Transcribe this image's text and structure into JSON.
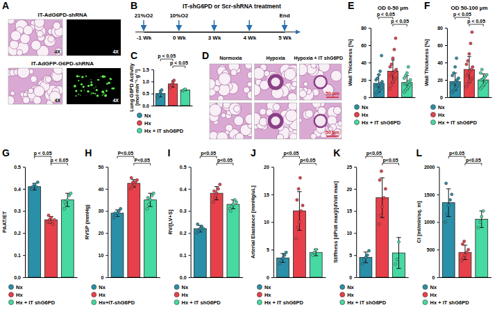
{
  "chart_data": [
    {
      "type": "image",
      "label": "A",
      "rows": [
        {
          "title": "IT-AdG6PD-shRNA",
          "magnifications": [
            "4X",
            "4X"
          ]
        },
        {
          "title": "IT-AdGFP-G6PD-shRNA",
          "magnifications": [
            "4X",
            "4X"
          ]
        }
      ]
    },
    {
      "type": "timeline",
      "label": "B",
      "title": "IT-shG6PD or Scr-shRNA treatment",
      "categories": [
        "-1 Wk",
        "0 Wk",
        "3 Wk",
        "4 Wk",
        "5 Wk"
      ],
      "annotations": [
        {
          "text": "21%O2",
          "at": 0
        },
        {
          "text": "10%O2",
          "at": 1
        },
        {
          "text": "End",
          "at": 4
        }
      ]
    },
    {
      "type": "bar",
      "label": "C",
      "ylabel": "Lung G6PD Activity [mol·min⁻¹·g⁻¹]",
      "categories": [
        "Nx",
        "Hx",
        "Hx + IT shG6PD"
      ],
      "colors": [
        "#2a8fa8",
        "#e8404a",
        "#46d9a2"
      ],
      "values": [
        0.5,
        0.9,
        0.65
      ],
      "errors": [
        0.13,
        0.13,
        0.03
      ],
      "points": [
        [
          0.35,
          0.45,
          0.55,
          0.65
        ],
        [
          0.75,
          0.85,
          0.95,
          1.05
        ],
        [
          0.62,
          0.65,
          0.68
        ]
      ],
      "ylim": [
        0,
        1.5
      ],
      "yticks": [
        {
          "value": 0,
          "label": "0.0"
        },
        0.5,
        {
          "value": 1,
          "label": "1.0"
        },
        1.5
      ],
      "annotations": [
        "p < 0.05",
        "p < 0.05"
      ],
      "legend": "bottom",
      "tick_labels": "y",
      "grid": false
    },
    {
      "type": "image",
      "label": "D",
      "columns": [
        "Normoxia",
        "Hypoxia",
        "Hypoxia + IT shG6PD"
      ],
      "scale_bars": [
        "50 µm",
        "50 µm"
      ]
    },
    {
      "type": "bar",
      "label": "E",
      "title": "OD 0-50 µm",
      "ylabel": "Wall Thickness [%]",
      "categories": [
        "Nx",
        "Hx",
        "Hx + IT shG6PD"
      ],
      "colors": [
        "#2a8fa8",
        "#e8404a",
        "#46d9a2"
      ],
      "values": [
        16,
        30,
        17
      ],
      "errors": [
        10,
        13,
        8
      ],
      "points": [
        [
          4,
          6,
          8,
          10,
          11,
          13,
          14,
          15,
          16,
          18,
          20,
          22,
          26,
          30,
          48
        ],
        [
          10,
          14,
          18,
          20,
          22,
          25,
          27,
          28,
          30,
          32,
          35,
          38,
          45,
          55,
          68
        ],
        [
          6,
          8,
          10,
          12,
          14,
          15,
          16,
          17,
          18,
          20,
          22,
          25,
          28,
          35
        ]
      ],
      "ylim": [
        0,
        80
      ],
      "yticks": [
        0,
        20,
        40,
        60,
        80
      ],
      "annotations": [
        "p < 0.05",
        "p < 0.05"
      ],
      "legend": "bottom",
      "tick_labels": "y",
      "grid": false
    },
    {
      "type": "bar",
      "label": "F",
      "title": "OD 50-100 µm",
      "ylabel": "Wall Thickness [%]",
      "categories": [
        "Nx",
        "Hx",
        "Hx + IT shG6PD"
      ],
      "colors": [
        "#2a8fa8",
        "#e8404a",
        "#46d9a2"
      ],
      "values": [
        18,
        32,
        20
      ],
      "errors": [
        10,
        15,
        7
      ],
      "points": [
        [
          6,
          8,
          10,
          12,
          14,
          15,
          17,
          18,
          20,
          22,
          25,
          28,
          35,
          45
        ],
        [
          12,
          15,
          18,
          20,
          22,
          25,
          28,
          30,
          32,
          35,
          38,
          42,
          50,
          62,
          75
        ],
        [
          10,
          12,
          14,
          16,
          18,
          20,
          21,
          22,
          24,
          26,
          28,
          32
        ]
      ],
      "ylim": [
        0,
        80
      ],
      "yticks": [
        0,
        20,
        40,
        60,
        80
      ],
      "annotations": [
        "p < 0.05",
        "p < 0.05"
      ],
      "legend": "bottom",
      "tick_labels": "y",
      "grid": false
    },
    {
      "type": "bar",
      "label": "G",
      "ylabel": "PAAT/ET",
      "categories": [
        "Nx",
        "Hx",
        "Hx + IT shG6PD"
      ],
      "colors": [
        "#2a8fa8",
        "#e8404a",
        "#46d9a2"
      ],
      "values": [
        0.41,
        0.26,
        0.35
      ],
      "errors": [
        0.015,
        0.015,
        0.03
      ],
      "points": [
        [
          0.4,
          0.41,
          0.42,
          0.41,
          0.43,
          0.4
        ],
        [
          0.25,
          0.26,
          0.27,
          0.24,
          0.26,
          0.28,
          0.25
        ],
        [
          0.31,
          0.33,
          0.35,
          0.37,
          0.38,
          0.34
        ]
      ],
      "ylim": [
        0,
        0.5
      ],
      "yticks": [
        {
          "value": 0,
          "label": "0.0"
        },
        0.1,
        0.2,
        0.3,
        0.4,
        0.5
      ],
      "annotations": [
        "p < 0.05",
        "p < 0.05"
      ],
      "legend": "bottom",
      "tick_labels": "y",
      "grid": false
    },
    {
      "type": "bar",
      "label": "H",
      "ylabel": "RVSP (mmHg)",
      "categories": [
        "Nx",
        "Hx",
        "Hx+IT-shG6PD"
      ],
      "colors": [
        "#2a8fa8",
        "#e8404a",
        "#46d9a2"
      ],
      "values": [
        29,
        42.5,
        35
      ],
      "errors": [
        1.5,
        1.7,
        3
      ],
      "points": [
        [
          27,
          28,
          29,
          30,
          31,
          29
        ],
        [
          40,
          41,
          42,
          43,
          44,
          45,
          43,
          42
        ],
        [
          31,
          33,
          35,
          37,
          38,
          36
        ]
      ],
      "ylim": [
        0,
        50
      ],
      "yticks": [
        0,
        10,
        20,
        30,
        40,
        50
      ],
      "annotations": [
        "P<0.05",
        "P<0.05"
      ],
      "legend": "bottom",
      "tick_labels": "y",
      "grid": false
    },
    {
      "type": "bar",
      "label": "I",
      "ylabel": "RV/[LV+S]",
      "categories": [
        "Nx",
        "Hx",
        "Hx + IT shG6PD"
      ],
      "colors": [
        "#2a8fa8",
        "#e8404a",
        "#46d9a2"
      ],
      "values": [
        0.22,
        0.38,
        0.33
      ],
      "errors": [
        0.015,
        0.03,
        0.02
      ],
      "points": [
        [
          0.2,
          0.21,
          0.22,
          0.23,
          0.22,
          0.24
        ],
        [
          0.34,
          0.36,
          0.38,
          0.4,
          0.42,
          0.39,
          0.37
        ],
        [
          0.31,
          0.32,
          0.33,
          0.35,
          0.34,
          0.3
        ]
      ],
      "ylim": [
        0,
        0.5
      ],
      "yticks": [
        {
          "value": 0,
          "label": "0.0"
        },
        0.1,
        0.2,
        0.3,
        0.4,
        0.5
      ],
      "annotations": [
        "p<0.05",
        "p<0.05"
      ],
      "legend": "bottom",
      "tick_labels": "y",
      "grid": false
    },
    {
      "type": "bar",
      "label": "J",
      "ylabel": "Arterial Elastance [mmHg/uL]",
      "categories": [
        "Nx",
        "Hx",
        "Hx + IT shG6PD"
      ],
      "colors": [
        "#2a8fa8",
        "#e8404a",
        "#46d9a2"
      ],
      "values": [
        3.5,
        12,
        4.5
      ],
      "errors": [
        0.8,
        3.5,
        0.6
      ],
      "points": [
        [
          2.5,
          3,
          3.5,
          4,
          4.5
        ],
        [
          7,
          9,
          10,
          12,
          13,
          14,
          16,
          18
        ],
        [
          4,
          4.5,
          5
        ]
      ],
      "ylim": [
        0,
        20
      ],
      "yticks": [
        0,
        5,
        10,
        15,
        20
      ],
      "annotations": [
        "p<0.05",
        "p<0.05"
      ],
      "legend": "bottom",
      "tick_labels": "y",
      "grid": false
    },
    {
      "type": "bar",
      "label": "K",
      "ylabel": "Stiffness [dP/dt max]/[dV/dt max]",
      "categories": [
        "Nx",
        "Hx",
        "Hx + IT shG6PD"
      ],
      "colors": [
        "#2a8fa8",
        "#e8404a",
        "#46d9a2"
      ],
      "values": [
        4.5,
        18,
        5.5
      ],
      "errors": [
        1.2,
        4.5,
        3.5
      ],
      "points": [
        [
          3,
          4,
          4.5,
          5,
          6
        ],
        [
          12,
          14,
          16,
          18,
          20,
          22,
          24
        ],
        [
          3,
          4,
          8
        ]
      ],
      "ylim": [
        0,
        25
      ],
      "yticks": [
        0,
        5,
        10,
        15,
        20,
        25
      ],
      "annotations": [
        "p<0.05",
        "p<0.05"
      ],
      "legend": "bottom",
      "tick_labels": "y",
      "grid": false
    },
    {
      "type": "bar",
      "label": "L",
      "ylabel": "CI [ml/min/sq. m]",
      "categories": [
        "Nx",
        "Hx",
        "Hx + IT shG6PD"
      ],
      "colors": [
        "#2a8fa8",
        "#e8404a",
        "#46d9a2"
      ],
      "values": [
        1350,
        450,
        1050
      ],
      "errors": [
        250,
        130,
        150
      ],
      "points": [
        [
          1000,
          1150,
          1300,
          1400,
          1500,
          1700
        ],
        [
          300,
          350,
          400,
          450,
          500,
          600,
          650
        ],
        [
          900,
          1000,
          1100,
          1200
        ]
      ],
      "ylim": [
        0,
        2000
      ],
      "yticks": [
        0,
        500,
        1000,
        1500,
        2000
      ],
      "annotations": [
        "p<0.05",
        "p<0.05"
      ],
      "legend": "bottom",
      "tick_labels": "y",
      "grid": false
    }
  ]
}
